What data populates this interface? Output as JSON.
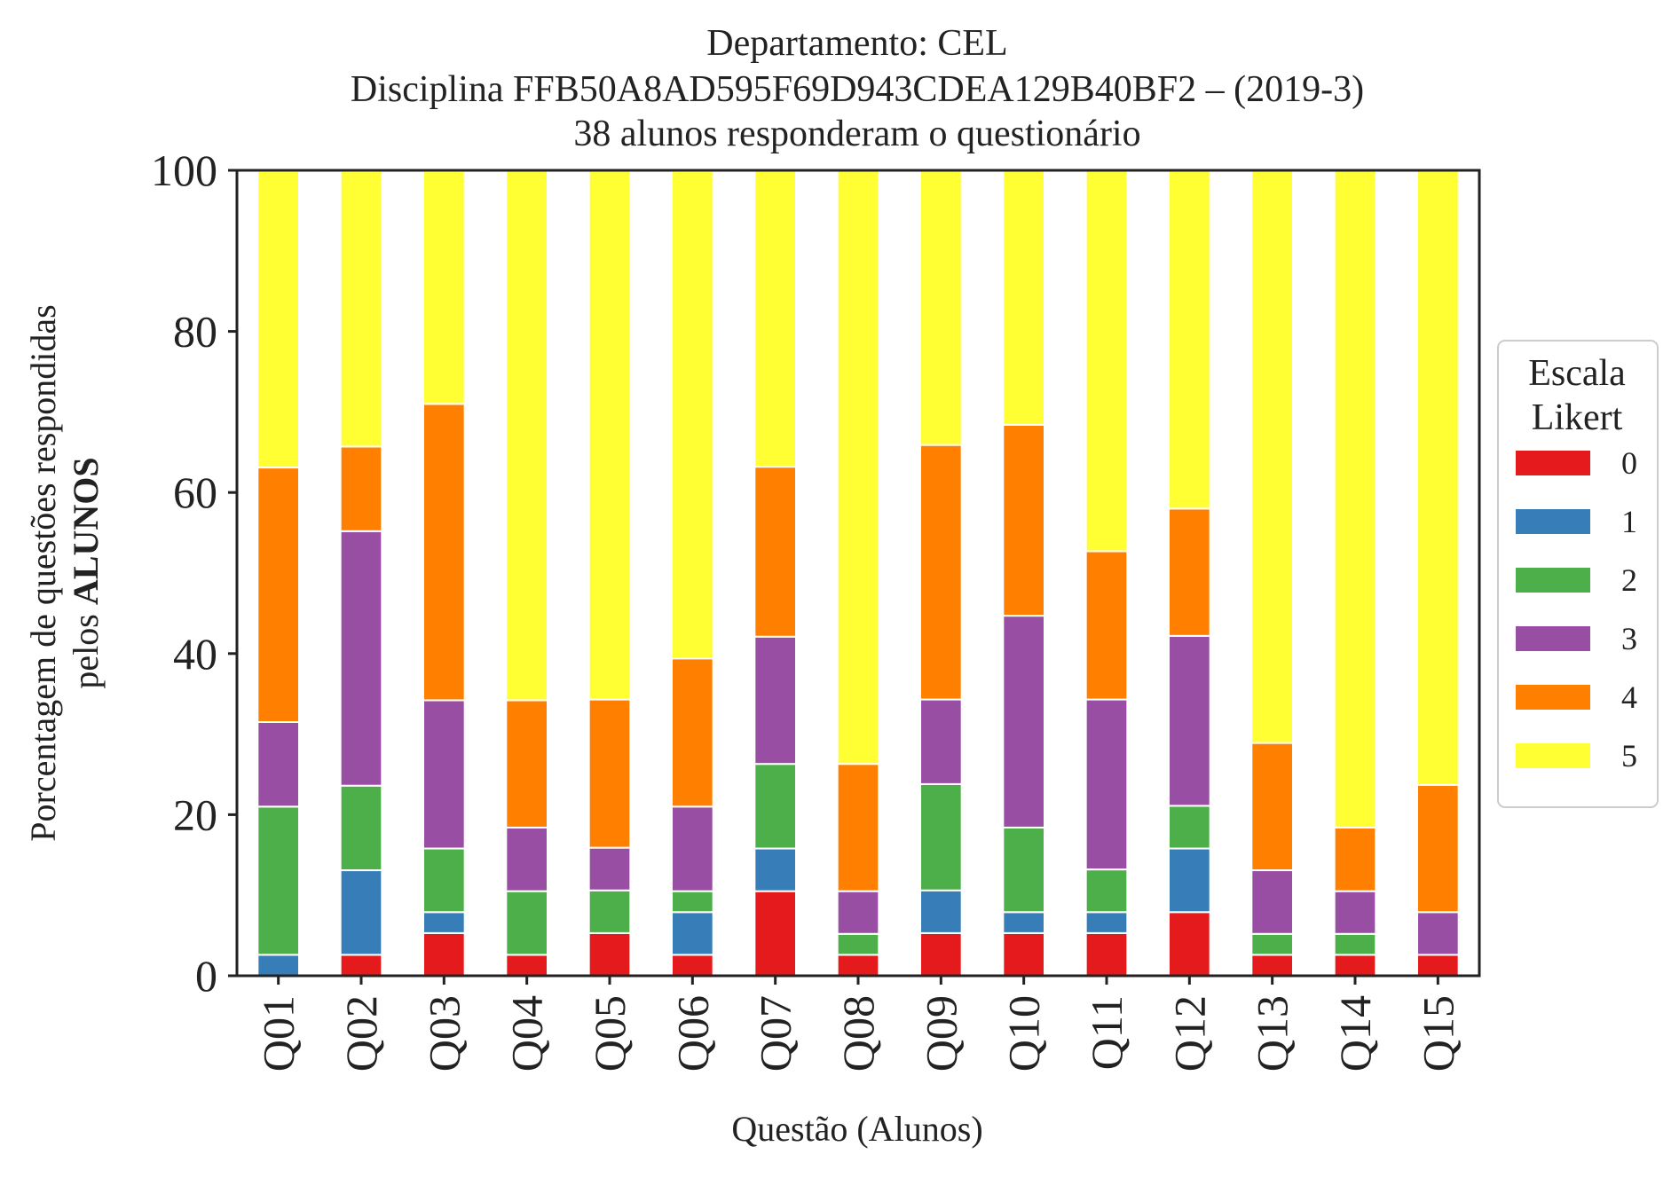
{
  "chart_data": {
    "type": "bar",
    "stacked": true,
    "title_lines": [
      "Departamento: CEL",
      "Disciplina FFB50A8AD595F69D943CDEA129B40BF2 – (2019-3)",
      "38 alunos responderam o questionário"
    ],
    "xlabel": "Questão (Alunos)",
    "ylabel_line1": "Porcentagem de questões respondidas",
    "ylabel_line2_prefix": "pelos ",
    "ylabel_line2_bold": "ALUNOS",
    "ylim": [
      0,
      100
    ],
    "yticks": [
      "0",
      "20",
      "40",
      "60",
      "80",
      "100"
    ],
    "categories": [
      "Q01",
      "Q02",
      "Q03",
      "Q04",
      "Q05",
      "Q06",
      "Q07",
      "Q08",
      "Q09",
      "Q10",
      "Q11",
      "Q12",
      "Q13",
      "Q14",
      "Q15"
    ],
    "legend": {
      "title_lines": [
        "Escala",
        "Likert"
      ],
      "position": "right"
    },
    "series": [
      {
        "name": "0",
        "color": "#e41a1c",
        "values": [
          0.0,
          2.6,
          5.3,
          2.6,
          5.3,
          2.6,
          10.5,
          2.6,
          5.3,
          5.3,
          5.3,
          7.9,
          2.6,
          2.6,
          2.6
        ]
      },
      {
        "name": "1",
        "color": "#377eb8",
        "values": [
          2.6,
          10.5,
          2.6,
          0.0,
          0.0,
          5.3,
          5.3,
          0.0,
          5.3,
          2.6,
          2.6,
          7.9,
          0.0,
          0.0,
          0.0
        ]
      },
      {
        "name": "2",
        "color": "#4daf4a",
        "values": [
          18.4,
          10.5,
          7.9,
          7.9,
          5.3,
          2.6,
          10.5,
          2.6,
          13.2,
          10.5,
          5.3,
          5.3,
          2.6,
          2.6,
          0.0
        ]
      },
      {
        "name": "3",
        "color": "#984ea3",
        "values": [
          10.5,
          31.6,
          18.4,
          7.9,
          5.3,
          10.5,
          15.8,
          5.3,
          10.5,
          26.3,
          21.1,
          21.1,
          7.9,
          5.3,
          5.3
        ]
      },
      {
        "name": "4",
        "color": "#ff7f00",
        "values": [
          31.6,
          10.5,
          36.8,
          15.8,
          18.4,
          18.4,
          21.1,
          15.8,
          31.6,
          23.7,
          18.4,
          15.8,
          15.8,
          7.9,
          15.8
        ]
      },
      {
        "name": "5",
        "color": "#ffff33",
        "values": [
          36.8,
          34.2,
          28.9,
          65.8,
          65.8,
          60.5,
          36.8,
          73.7,
          34.2,
          31.6,
          47.4,
          42.1,
          71.1,
          81.6,
          76.3
        ]
      }
    ]
  }
}
